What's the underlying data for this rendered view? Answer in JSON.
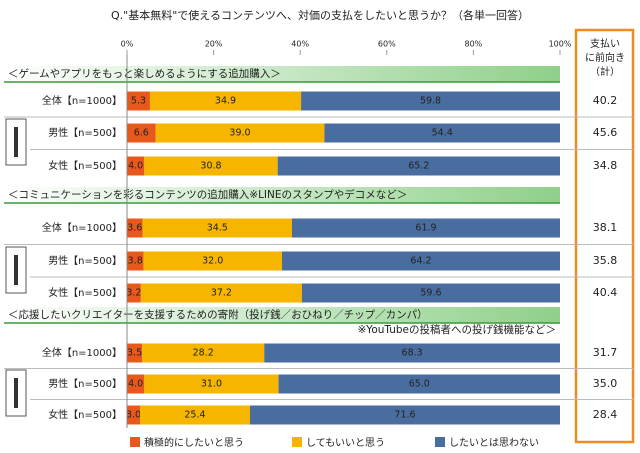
{
  "chart_data": {
    "type": "bar",
    "orientation": "horizontal",
    "stacked": true,
    "title": "Q.\"基本無料\"で使えるコンテンツへ、対価の支払をしたいと思うか？（各単一回答）",
    "xlim": [
      0,
      100
    ],
    "xticks": [
      {
        "value": 0,
        "label": "0%"
      },
      {
        "value": 20,
        "label": "20%"
      },
      {
        "value": 40,
        "label": "40%"
      },
      {
        "value": 60,
        "label": "60%"
      },
      {
        "value": 80,
        "label": "80%"
      },
      {
        "value": 100,
        "label": "100%"
      }
    ],
    "totals_header": [
      "支払い",
      "に前向き",
      "（計）"
    ],
    "legend": "bottom",
    "series": [
      {
        "name": "積極的にしたいと思う",
        "color": "#e8581c"
      },
      {
        "name": "してもいいと思う",
        "color": "#f6b600"
      },
      {
        "name": "したいとは思わない",
        "color": "#4a6d9f"
      }
    ],
    "sections": [
      {
        "title": "＜ゲームやアプリをもっと楽しめるようにする追加購入＞",
        "categories": [
          "全体【n=1000】",
          "男性【n=500】",
          "女性【n=500】"
        ],
        "values": [
          [
            5.3,
            6.6,
            4.0
          ],
          [
            34.9,
            39.0,
            30.8
          ],
          [
            59.8,
            54.4,
            65.2
          ]
        ],
        "value_labels": [
          [
            "5.3",
            "6.6",
            "4.0"
          ],
          [
            "34.9",
            "39.0",
            "30.8"
          ],
          [
            "59.8",
            "54.4",
            "65.2"
          ]
        ],
        "totals": [
          "40.2",
          "45.6",
          "34.8"
        ]
      },
      {
        "title": "＜コミュニケーションを彩るコンテンツの追加購入※LINEのスタンプやデコメなど＞",
        "categories": [
          "全体【n=1000】",
          "男性【n=500】",
          "女性【n=500】"
        ],
        "values": [
          [
            3.6,
            3.8,
            3.2
          ],
          [
            34.5,
            32.0,
            37.2
          ],
          [
            61.9,
            64.2,
            59.6
          ]
        ],
        "value_labels": [
          [
            "3.6",
            "3.8",
            "3.2"
          ],
          [
            "34.5",
            "32.0",
            "37.2"
          ],
          [
            "61.9",
            "64.2",
            "59.6"
          ]
        ],
        "totals": [
          "38.1",
          "35.8",
          "40.4"
        ]
      },
      {
        "title": "＜応援したいクリエイターを支援するための寄附（投げ銭／おひねり／チップ／カンパ）",
        "note": "※YouTubeの投稿者への投げ銭機能など＞",
        "categories": [
          "全体【n=1000】",
          "男性【n=500】",
          "女性【n=500】"
        ],
        "values": [
          [
            3.5,
            4.0,
            3.0
          ],
          [
            28.2,
            31.0,
            25.4
          ],
          [
            68.3,
            65.0,
            71.6
          ]
        ],
        "value_labels": [
          [
            "3.5",
            "4.0",
            "3.0"
          ],
          [
            "28.2",
            "31.0",
            "25.4"
          ],
          [
            "68.3",
            "65.0",
            "71.6"
          ]
        ],
        "totals": [
          "31.7",
          "35.0",
          "28.4"
        ]
      }
    ]
  }
}
